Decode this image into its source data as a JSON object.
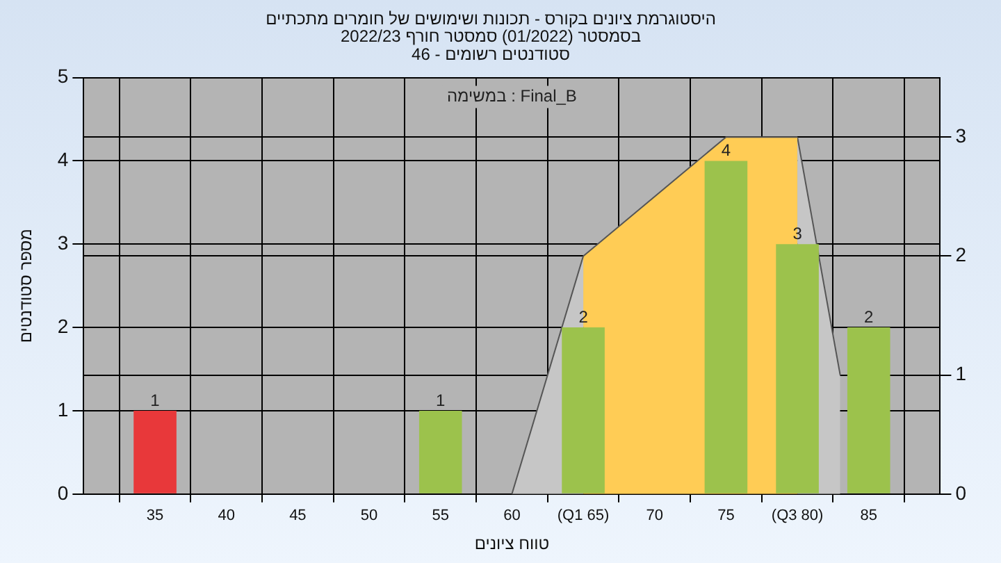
{
  "chart_data": {
    "type": "bar",
    "title": "היסטוגרמת ציונים בקורס - תכונות ושימושים של חומרים מתכתיים",
    "subtitle": "בסמסטר (01/2022) סמסטר חורף 2022/23\nסטודנטים רשומים - 46",
    "xlabel": "טווח ציונים",
    "ylabel": "מספר סטודנטים",
    "annotations": [
      "במשימה : Final_B"
    ],
    "series": [
      {
        "type": "area",
        "axis": "y2",
        "color": "#c6c6c6",
        "x": [
          60,
          65
        ],
        "values": [
          0,
          2
        ]
      },
      {
        "type": "area",
        "axis": "y2",
        "color": "#ffcc55",
        "x": [
          65,
          75,
          80
        ],
        "values": [
          2,
          3,
          3
        ]
      },
      {
        "type": "area",
        "axis": "y2",
        "color": "#c6c6c6",
        "x": [
          80,
          83
        ],
        "values": [
          3,
          1
        ]
      },
      {
        "x": [
          35,
          40,
          45,
          50,
          55,
          60,
          65,
          70,
          75,
          80,
          85
        ],
        "values": [
          1,
          0,
          0,
          0,
          1,
          0,
          2,
          0,
          4,
          3,
          2
        ],
        "colors": [
          "#e8383a",
          "#9cc24c",
          "#9cc24c",
          "#9cc24c",
          "#9cc24c",
          "#9cc24c",
          "#9cc24c",
          "#9cc24c",
          "#9cc24c",
          "#9cc24c",
          "#9cc24c"
        ],
        "value_labels": [
          "1",
          null,
          null,
          null,
          "1",
          null,
          "2",
          null,
          "4",
          "3",
          "2"
        ]
      }
    ],
    "xlim": [
      30,
      90
    ],
    "xticks": [
      35,
      40,
      45,
      50,
      55,
      60,
      {
        "value": 65,
        "label": "(Q1 65)"
      },
      70,
      75,
      {
        "value": 80,
        "label": "(Q3 80)"
      },
      85
    ],
    "ylim": [
      0,
      5
    ],
    "yticks": [
      0,
      1,
      2,
      3,
      4,
      5
    ],
    "y2lim": [
      0,
      3.5
    ],
    "y2ticks": [
      0,
      1,
      2,
      3
    ],
    "grid": true,
    "legend": false
  }
}
